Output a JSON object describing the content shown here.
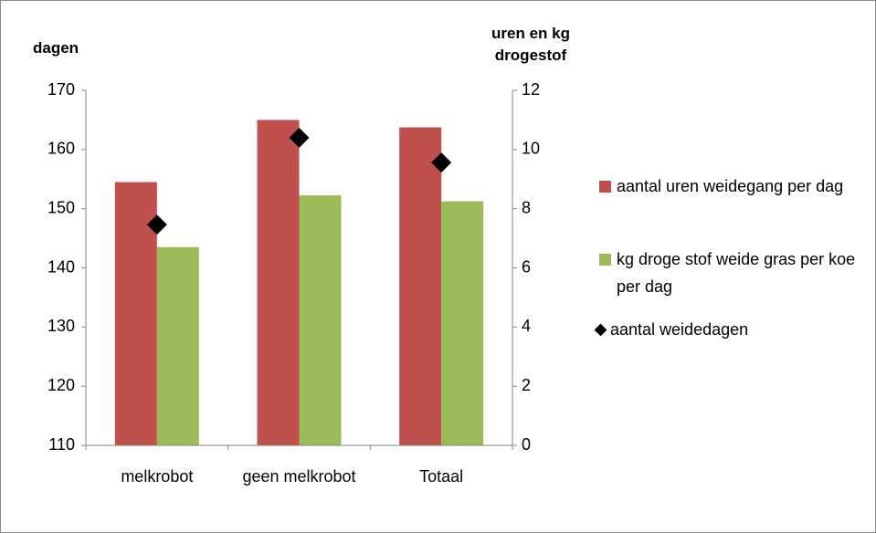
{
  "chart_data": {
    "type": "bar",
    "categories": [
      "melkrobot",
      "geen melkrobot",
      "Totaal"
    ],
    "ylabel": "dagen",
    "y2label": "uren en kg drogestof",
    "ylim": [
      110,
      170
    ],
    "yticks": [
      110,
      120,
      130,
      140,
      150,
      160,
      170
    ],
    "y2lim": [
      0,
      12
    ],
    "y2ticks": [
      0,
      2,
      4,
      6,
      8,
      10,
      12
    ],
    "series": [
      {
        "name": "aantal uren weidegang per dag",
        "color": "#c0504d",
        "type": "bar",
        "axis": "y2",
        "values": [
          8.9,
          11.0,
          10.75
        ]
      },
      {
        "name": "kg droge stof weide gras per koe per dag",
        "color": "#9bbb59",
        "type": "bar",
        "axis": "y2",
        "values": [
          6.7,
          8.45,
          8.25
        ]
      },
      {
        "name": "aantal weidedagen",
        "color": "#000000",
        "type": "marker",
        "axis": "y",
        "values": [
          147.3,
          162.0,
          157.8
        ]
      }
    ],
    "legend": "right"
  }
}
